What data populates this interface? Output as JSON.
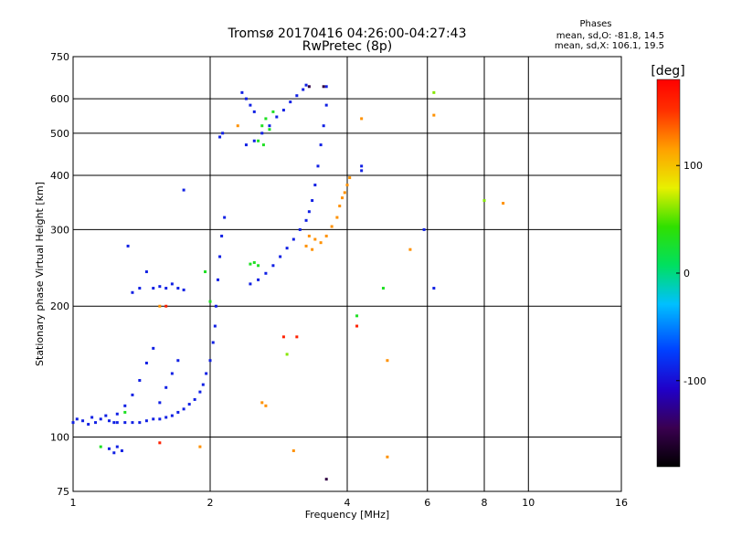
{
  "chart_data": {
    "type": "scatter",
    "title": "Tromsø 20170416 04:26:00-04:27:43",
    "subtitle": "RwPretec (8p)",
    "xlabel": "Frequency [MHz]",
    "ylabel": "Stationary phase Virtual Height [km]",
    "x_scale": "log",
    "y_scale": "log",
    "xlim": [
      1,
      16
    ],
    "ylim": [
      75,
      750
    ],
    "x_ticks": [
      1,
      2,
      4,
      6,
      8,
      10,
      16
    ],
    "y_ticks": [
      75,
      100,
      200,
      300,
      400,
      500,
      600,
      750
    ],
    "grid": true,
    "stats": {
      "header": "Phases",
      "line1": "mean, sd,O: -81.8, 14.5",
      "line2": "mean, sd,X: 106.1, 19.5"
    },
    "colorbar": {
      "label": "[deg]",
      "range": [
        -180,
        180
      ],
      "ticks": [
        100,
        0,
        -100
      ],
      "colormap": "rainbow (black → purple → blue → cyan → green → yellow → orange → red)"
    },
    "series": [
      {
        "phase_deg": -90,
        "points": [
          [
            1.0,
            108
          ],
          [
            1.02,
            110
          ],
          [
            1.05,
            109
          ],
          [
            1.08,
            107
          ],
          [
            1.1,
            111
          ],
          [
            1.12,
            108
          ],
          [
            1.15,
            110
          ],
          [
            1.18,
            112
          ],
          [
            1.2,
            109
          ],
          [
            1.23,
            108
          ],
          [
            1.25,
            108
          ],
          [
            1.3,
            108
          ],
          [
            1.35,
            108
          ],
          [
            1.4,
            108
          ],
          [
            1.45,
            109
          ],
          [
            1.5,
            110
          ],
          [
            1.55,
            110
          ],
          [
            1.6,
            111
          ],
          [
            1.65,
            112
          ],
          [
            1.7,
            114
          ],
          [
            1.75,
            116
          ],
          [
            1.8,
            119
          ],
          [
            1.85,
            122
          ],
          [
            1.9,
            127
          ],
          [
            1.93,
            132
          ],
          [
            1.96,
            140
          ],
          [
            2.0,
            150
          ],
          [
            2.03,
            165
          ],
          [
            2.05,
            180
          ],
          [
            2.06,
            200
          ],
          [
            2.08,
            230
          ],
          [
            2.1,
            260
          ],
          [
            2.12,
            290
          ],
          [
            2.15,
            320
          ],
          [
            1.35,
            215
          ],
          [
            1.4,
            220
          ],
          [
            1.45,
            240
          ],
          [
            1.5,
            220
          ],
          [
            1.55,
            222
          ],
          [
            1.6,
            220
          ],
          [
            1.65,
            225
          ],
          [
            1.7,
            220
          ],
          [
            1.75,
            218
          ],
          [
            1.25,
            113
          ],
          [
            1.3,
            118
          ],
          [
            1.35,
            125
          ],
          [
            1.4,
            135
          ],
          [
            1.45,
            148
          ],
          [
            1.5,
            160
          ],
          [
            1.55,
            120
          ],
          [
            1.6,
            130
          ],
          [
            1.65,
            140
          ],
          [
            1.7,
            150
          ],
          [
            1.2,
            94
          ],
          [
            1.23,
            92
          ],
          [
            1.25,
            95
          ],
          [
            1.28,
            93
          ],
          [
            2.1,
            490
          ],
          [
            2.13,
            500
          ],
          [
            2.45,
            225
          ],
          [
            2.55,
            230
          ],
          [
            2.65,
            238
          ],
          [
            2.75,
            248
          ],
          [
            2.85,
            260
          ],
          [
            2.95,
            272
          ],
          [
            3.05,
            285
          ],
          [
            3.15,
            300
          ],
          [
            3.25,
            315
          ],
          [
            3.3,
            330
          ],
          [
            3.35,
            350
          ],
          [
            3.4,
            380
          ],
          [
            3.45,
            420
          ],
          [
            3.5,
            470
          ],
          [
            3.55,
            520
          ],
          [
            3.6,
            580
          ],
          [
            3.6,
            640
          ],
          [
            2.4,
            470
          ],
          [
            2.5,
            480
          ],
          [
            2.6,
            500
          ],
          [
            2.7,
            520
          ],
          [
            2.8,
            545
          ],
          [
            2.9,
            565
          ],
          [
            3.0,
            590
          ],
          [
            3.1,
            610
          ],
          [
            3.2,
            630
          ],
          [
            3.25,
            645
          ],
          [
            2.35,
            620
          ],
          [
            2.4,
            600
          ],
          [
            2.45,
            580
          ],
          [
            2.5,
            560
          ],
          [
            1.75,
            370
          ],
          [
            1.32,
            275
          ],
          [
            4.3,
            420
          ],
          [
            4.3,
            410
          ],
          [
            6.2,
            220
          ],
          [
            5.9,
            300
          ]
        ]
      },
      {
        "phase_deg": 30,
        "points": [
          [
            2.45,
            250
          ],
          [
            2.5,
            252
          ],
          [
            2.55,
            248
          ],
          [
            2.6,
            520
          ],
          [
            2.65,
            540
          ],
          [
            2.7,
            510
          ],
          [
            2.75,
            560
          ],
          [
            2.55,
            480
          ],
          [
            2.62,
            470
          ],
          [
            1.95,
            240
          ],
          [
            2.0,
            205
          ],
          [
            4.8,
            220
          ],
          [
            4.2,
            190
          ],
          [
            1.15,
            95
          ],
          [
            1.3,
            114
          ]
        ]
      },
      {
        "phase_deg": 120,
        "points": [
          [
            3.3,
            290
          ],
          [
            3.4,
            285
          ],
          [
            3.5,
            280
          ],
          [
            3.6,
            290
          ],
          [
            3.7,
            305
          ],
          [
            3.8,
            320
          ],
          [
            3.85,
            340
          ],
          [
            3.9,
            355
          ],
          [
            3.95,
            365
          ],
          [
            4.0,
            380
          ],
          [
            4.05,
            395
          ],
          [
            3.25,
            275
          ],
          [
            3.35,
            270
          ],
          [
            2.6,
            120
          ],
          [
            2.65,
            118
          ],
          [
            1.55,
            200
          ],
          [
            1.9,
            95
          ],
          [
            3.05,
            93
          ],
          [
            4.9,
            90
          ],
          [
            4.9,
            150
          ],
          [
            6.2,
            550
          ],
          [
            4.3,
            540
          ],
          [
            8.8,
            345
          ],
          [
            5.5,
            270
          ],
          [
            2.3,
            520
          ]
        ]
      },
      {
        "phase_deg": 60,
        "points": [
          [
            2.95,
            155
          ],
          [
            6.2,
            620
          ],
          [
            8.0,
            350
          ]
        ]
      },
      {
        "phase_deg": 160,
        "points": [
          [
            1.55,
            97
          ],
          [
            1.6,
            200
          ],
          [
            3.1,
            170
          ],
          [
            4.2,
            180
          ],
          [
            2.9,
            170
          ]
        ]
      },
      {
        "phase_deg": -150,
        "points": [
          [
            3.6,
            80
          ],
          [
            3.55,
            640
          ],
          [
            3.3,
            640
          ]
        ]
      }
    ]
  }
}
